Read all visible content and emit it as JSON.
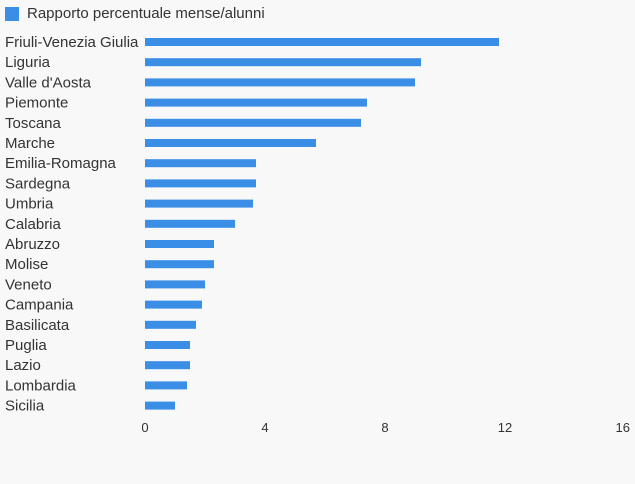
{
  "chart_data": {
    "type": "bar",
    "orientation": "horizontal",
    "legend_position": "top-left",
    "grid": false,
    "categories": [
      "Friuli-Venezia Giulia",
      "Liguria",
      "Valle d'Aosta",
      "Piemonte",
      "Toscana",
      "Marche",
      "Emilia-Romagna",
      "Sardegna",
      "Umbria",
      "Calabria",
      "Abruzzo",
      "Molise",
      "Veneto",
      "Campania",
      "Basilicata",
      "Puglia",
      "Lazio",
      "Lombardia",
      "Sicilia"
    ],
    "series": [
      {
        "name": "Rapporto percentuale mense/alunni",
        "color": "#3a8ee6",
        "values": [
          11.8,
          9.2,
          9.0,
          7.4,
          7.2,
          5.7,
          3.7,
          3.7,
          3.6,
          3.0,
          2.3,
          2.3,
          2.0,
          1.9,
          1.7,
          1.5,
          1.5,
          1.4,
          1.0
        ]
      }
    ],
    "xlim": [
      0,
      16
    ],
    "xticks": [
      "0",
      "4",
      "8",
      "12",
      "16"
    ],
    "xtick_values": [
      0,
      4,
      8,
      12,
      16
    ]
  }
}
